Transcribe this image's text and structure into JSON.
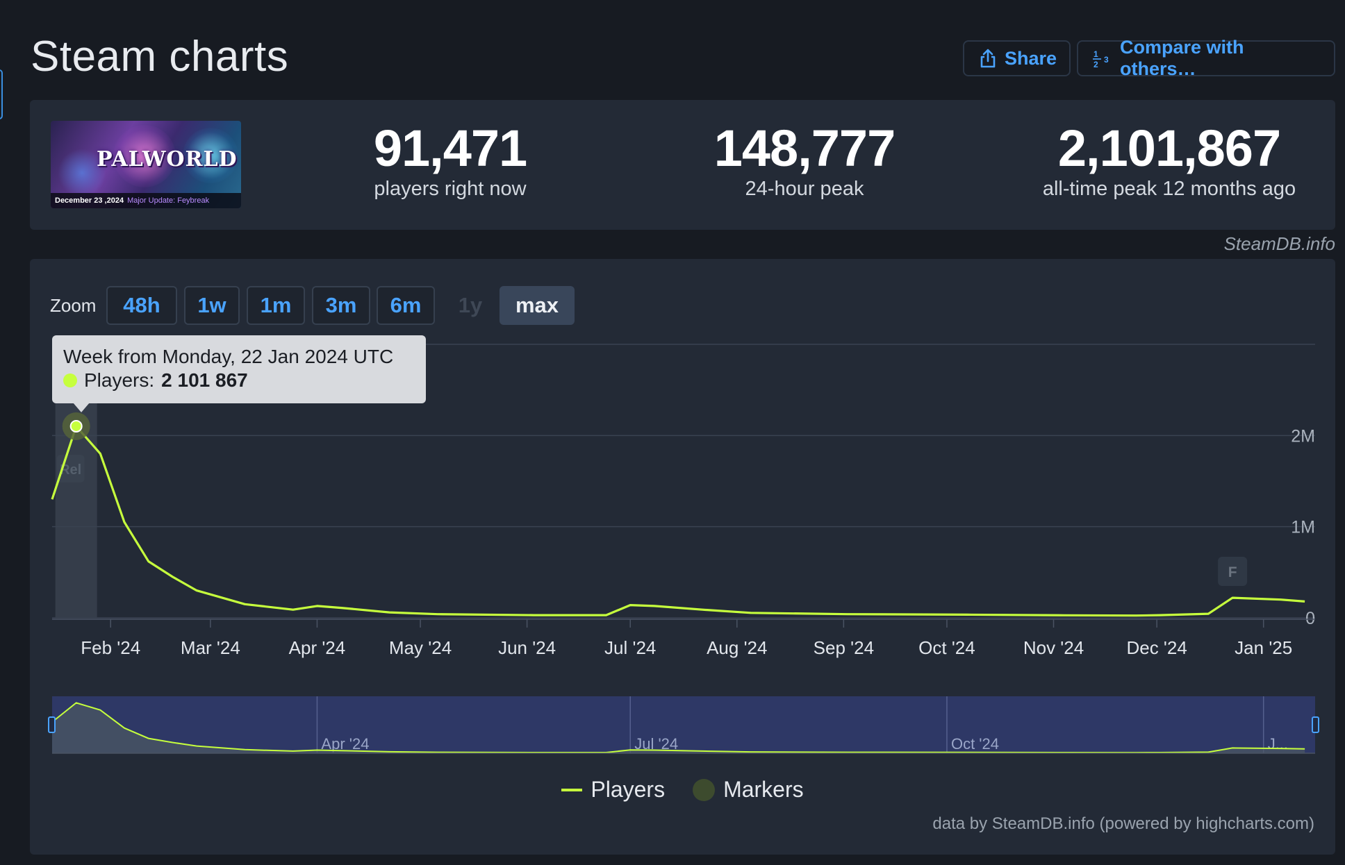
{
  "page": {
    "title": "Steam charts"
  },
  "header": {
    "share_label": "Share",
    "compare_label": "Compare with others…",
    "share_icon": "share-icon",
    "compare_icon": "numbers-icon"
  },
  "game": {
    "logo_text": "PALWORLD",
    "banner_date": "December 23 ,2024",
    "banner_text": "Major Update: Feybreak"
  },
  "stats": [
    {
      "value": "91,471",
      "label": "players right now"
    },
    {
      "value": "148,777",
      "label": "24-hour peak"
    },
    {
      "value": "2,101,867",
      "label": "all-time peak 12 months ago"
    }
  ],
  "source_label": "SteamDB.info",
  "zoom": {
    "label": "Zoom",
    "buttons": [
      {
        "label": "48h",
        "state": "enabled"
      },
      {
        "label": "1w",
        "state": "enabled"
      },
      {
        "label": "1m",
        "state": "enabled"
      },
      {
        "label": "3m",
        "state": "enabled"
      },
      {
        "label": "6m",
        "state": "enabled"
      },
      {
        "label": "1y",
        "state": "disabled"
      },
      {
        "label": "max",
        "state": "active"
      }
    ]
  },
  "tooltip": {
    "header": "Week from Monday, 22 Jan 2024 UTC",
    "series_label": "Players:",
    "series_value": "2 101 867"
  },
  "markers": [
    {
      "label": "Rel",
      "date": "2024-01-22"
    },
    {
      "label": "F",
      "date": "2024-12-23"
    }
  ],
  "legend": [
    {
      "label": "Players",
      "symbol": "line"
    },
    {
      "label": "Markers",
      "symbol": "dot"
    }
  ],
  "credits": "data by SteamDB.info (powered by highcharts.com)",
  "colors": {
    "series": "#c6ff3d",
    "accent": "#4aa3ff",
    "background": "#171b22",
    "card": "#232a36"
  },
  "chart_data": {
    "type": "line",
    "series": [
      {
        "name": "Players",
        "points": [
          [
            "2024-01-15",
            1300000
          ],
          [
            "2024-01-22",
            2101867
          ],
          [
            "2024-01-29",
            1800000
          ],
          [
            "2024-02-05",
            1050000
          ],
          [
            "2024-02-12",
            620000
          ],
          [
            "2024-02-19",
            450000
          ],
          [
            "2024-02-26",
            300000
          ],
          [
            "2024-03-11",
            150000
          ],
          [
            "2024-03-25",
            90000
          ],
          [
            "2024-04-01",
            130000
          ],
          [
            "2024-04-08",
            110000
          ],
          [
            "2024-04-22",
            60000
          ],
          [
            "2024-05-06",
            40000
          ],
          [
            "2024-06-03",
            30000
          ],
          [
            "2024-06-24",
            30000
          ],
          [
            "2024-07-01",
            140000
          ],
          [
            "2024-07-08",
            130000
          ],
          [
            "2024-07-22",
            90000
          ],
          [
            "2024-08-05",
            55000
          ],
          [
            "2024-09-02",
            40000
          ],
          [
            "2024-10-07",
            35000
          ],
          [
            "2024-11-04",
            28000
          ],
          [
            "2024-11-25",
            25000
          ],
          [
            "2024-12-02",
            30000
          ],
          [
            "2024-12-16",
            45000
          ],
          [
            "2024-12-23",
            220000
          ],
          [
            "2025-01-06",
            200000
          ],
          [
            "2025-01-13",
            180000
          ]
        ]
      }
    ],
    "x_axis": {
      "type": "datetime",
      "range": [
        "2024-01-15",
        "2025-01-16"
      ],
      "ticks": [
        {
          "date": "2024-02-01",
          "label": "Feb '24"
        },
        {
          "date": "2024-03-01",
          "label": "Mar '24"
        },
        {
          "date": "2024-04-01",
          "label": "Apr '24"
        },
        {
          "date": "2024-05-01",
          "label": "May '24"
        },
        {
          "date": "2024-06-01",
          "label": "Jun '24"
        },
        {
          "date": "2024-07-01",
          "label": "Jul '24"
        },
        {
          "date": "2024-08-01",
          "label": "Aug '24"
        },
        {
          "date": "2024-09-01",
          "label": "Sep '24"
        },
        {
          "date": "2024-10-01",
          "label": "Oct '24"
        },
        {
          "date": "2024-11-01",
          "label": "Nov '24"
        },
        {
          "date": "2024-12-01",
          "label": "Dec '24"
        },
        {
          "date": "2025-01-01",
          "label": "Jan '25"
        }
      ]
    },
    "y_axis": {
      "range": [
        0,
        3000000
      ],
      "ticks": [
        {
          "value": 0,
          "label": "0"
        },
        {
          "value": 1000000,
          "label": "1M"
        },
        {
          "value": 2000000,
          "label": "2M"
        },
        {
          "value": 3000000,
          "label": ""
        }
      ],
      "grid": true
    },
    "navigator": {
      "ticks": [
        {
          "date": "2024-04-01",
          "label": "Apr '24"
        },
        {
          "date": "2024-07-01",
          "label": "Jul '24"
        },
        {
          "date": "2024-10-01",
          "label": "Oct '24"
        },
        {
          "date": "2025-01-01",
          "label": "J..."
        }
      ]
    },
    "highlighted_point": "2024-01-22",
    "legend_position": "bottom"
  }
}
